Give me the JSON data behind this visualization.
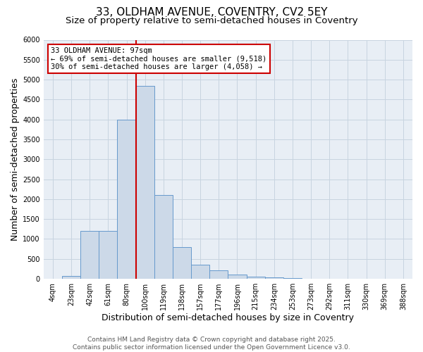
{
  "title_line1": "33, OLDHAM AVENUE, COVENTRY, CV2 5EY",
  "title_line2": "Size of property relative to semi-detached houses in Coventry",
  "xlabel": "Distribution of semi-detached houses by size in Coventry",
  "ylabel": "Number of semi-detached properties",
  "categories": [
    "4sqm",
    "23sqm",
    "42sqm",
    "61sqm",
    "80sqm",
    "100sqm",
    "119sqm",
    "138sqm",
    "157sqm",
    "177sqm",
    "196sqm",
    "215sqm",
    "234sqm",
    "253sqm",
    "273sqm",
    "292sqm",
    "311sqm",
    "330sqm",
    "369sqm",
    "388sqm"
  ],
  "values": [
    0,
    80,
    1200,
    1200,
    4000,
    4850,
    2100,
    800,
    350,
    220,
    100,
    50,
    30,
    15,
    8,
    4,
    2,
    1,
    0,
    0
  ],
  "bar_color": "#ccd9e8",
  "bar_edge_color": "#6699cc",
  "grid_color": "#c8d4e0",
  "background_color": "#e8eef5",
  "vline_color": "#cc0000",
  "annotation_text": "33 OLDHAM AVENUE: 97sqm\n← 69% of semi-detached houses are smaller (9,518)\n30% of semi-detached houses are larger (4,058) →",
  "ylim": [
    0,
    6000
  ],
  "yticks": [
    0,
    500,
    1000,
    1500,
    2000,
    2500,
    3000,
    3500,
    4000,
    4500,
    5000,
    5500,
    6000
  ],
  "footer_text": "Contains HM Land Registry data © Crown copyright and database right 2025.\nContains public sector information licensed under the Open Government Licence v3.0.",
  "title_fontsize": 11,
  "subtitle_fontsize": 9.5,
  "axis_label_fontsize": 9,
  "tick_fontsize": 7,
  "annotation_fontsize": 7.5,
  "footer_fontsize": 6.5
}
